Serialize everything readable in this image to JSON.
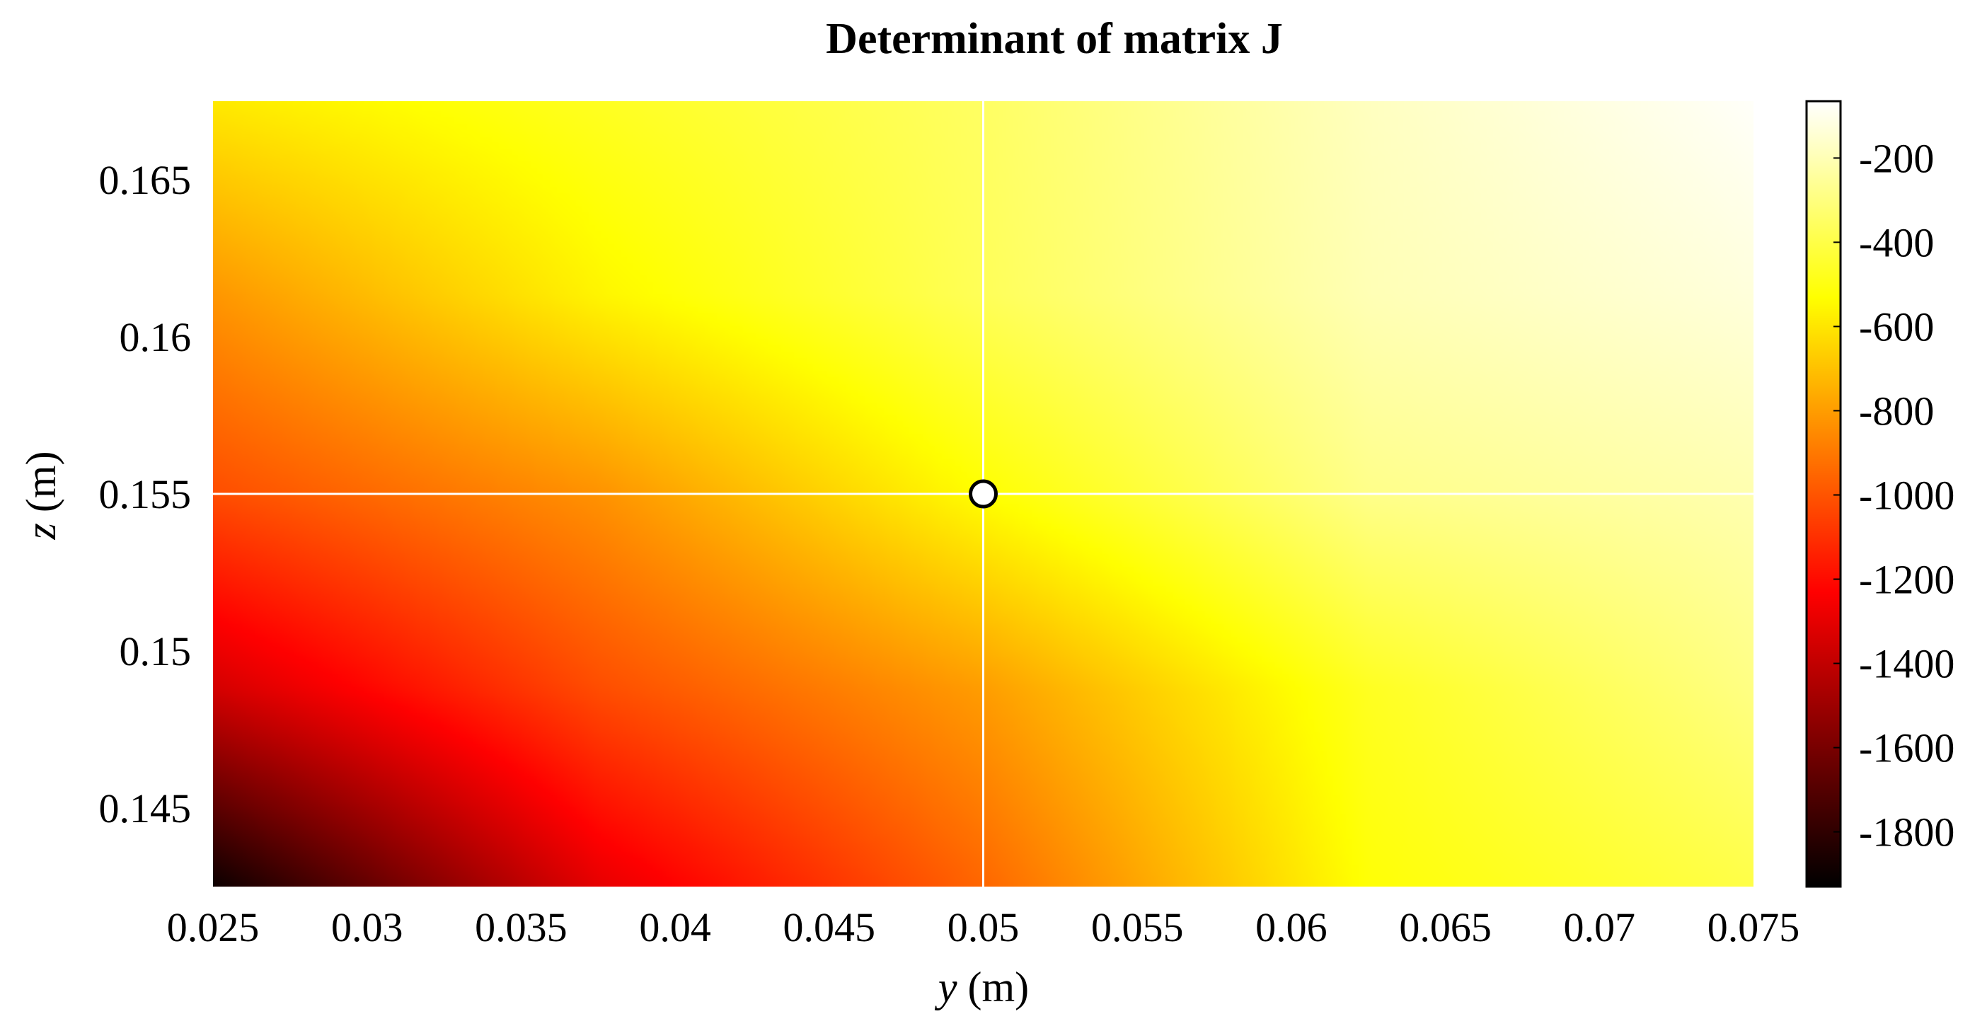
{
  "chart_data": {
    "type": "heatmap",
    "title": "Determinant of matrix J",
    "xlabel": {
      "var": "y",
      "unit": " (m)"
    },
    "ylabel": {
      "var": "z",
      "unit": " (m)"
    },
    "xlim": [
      0.025,
      0.075
    ],
    "ylim": [
      0.1425,
      0.1675
    ],
    "x_ticks": [
      0.025,
      0.03,
      0.035,
      0.04,
      0.045,
      0.05,
      0.055,
      0.06,
      0.065,
      0.07,
      0.075
    ],
    "x_tick_labels": [
      "0.025",
      "0.03",
      "0.035",
      "0.04",
      "0.045",
      "0.05",
      "0.055",
      "0.06",
      "0.065",
      "0.07",
      "0.075"
    ],
    "y_ticks": [
      0.145,
      0.15,
      0.155,
      0.16,
      0.165
    ],
    "y_tick_labels": [
      "0.145",
      "0.15",
      "0.155",
      "0.16",
      "0.165"
    ],
    "colormap": "hot",
    "clim": [
      -1930,
      -65
    ],
    "colorbar": {
      "ticks": [
        -1800,
        -1600,
        -1400,
        -1200,
        -1000,
        -800,
        -600,
        -400,
        -200
      ],
      "tick_labels": [
        "-1800",
        "-1600",
        "-1400",
        "-1200",
        "-1000",
        "-800",
        "-600",
        "-400",
        "-200"
      ]
    },
    "grid_x": [
      0.025,
      0.0375,
      0.05,
      0.0625,
      0.075
    ],
    "grid_y": [
      0.1425,
      0.1488,
      0.155,
      0.1613,
      0.1675
    ],
    "z_values": [
      [
        -1900,
        -1300,
        -950,
        -520,
        -400
      ],
      [
        -1350,
        -1020,
        -800,
        -470,
        -290
      ],
      [
        -1020,
        -830,
        -530,
        -280,
        -210
      ],
      [
        -820,
        -560,
        -370,
        -200,
        -130
      ],
      [
        -590,
        -470,
        -350,
        -180,
        -75
      ]
    ],
    "crosshair": {
      "y": 0.05,
      "z": 0.155,
      "color": "#ffffff"
    },
    "marker": {
      "y": 0.05,
      "z": 0.155,
      "shape": "circle",
      "fill": "#ffffff",
      "edge": "#000000"
    },
    "grid": false
  }
}
